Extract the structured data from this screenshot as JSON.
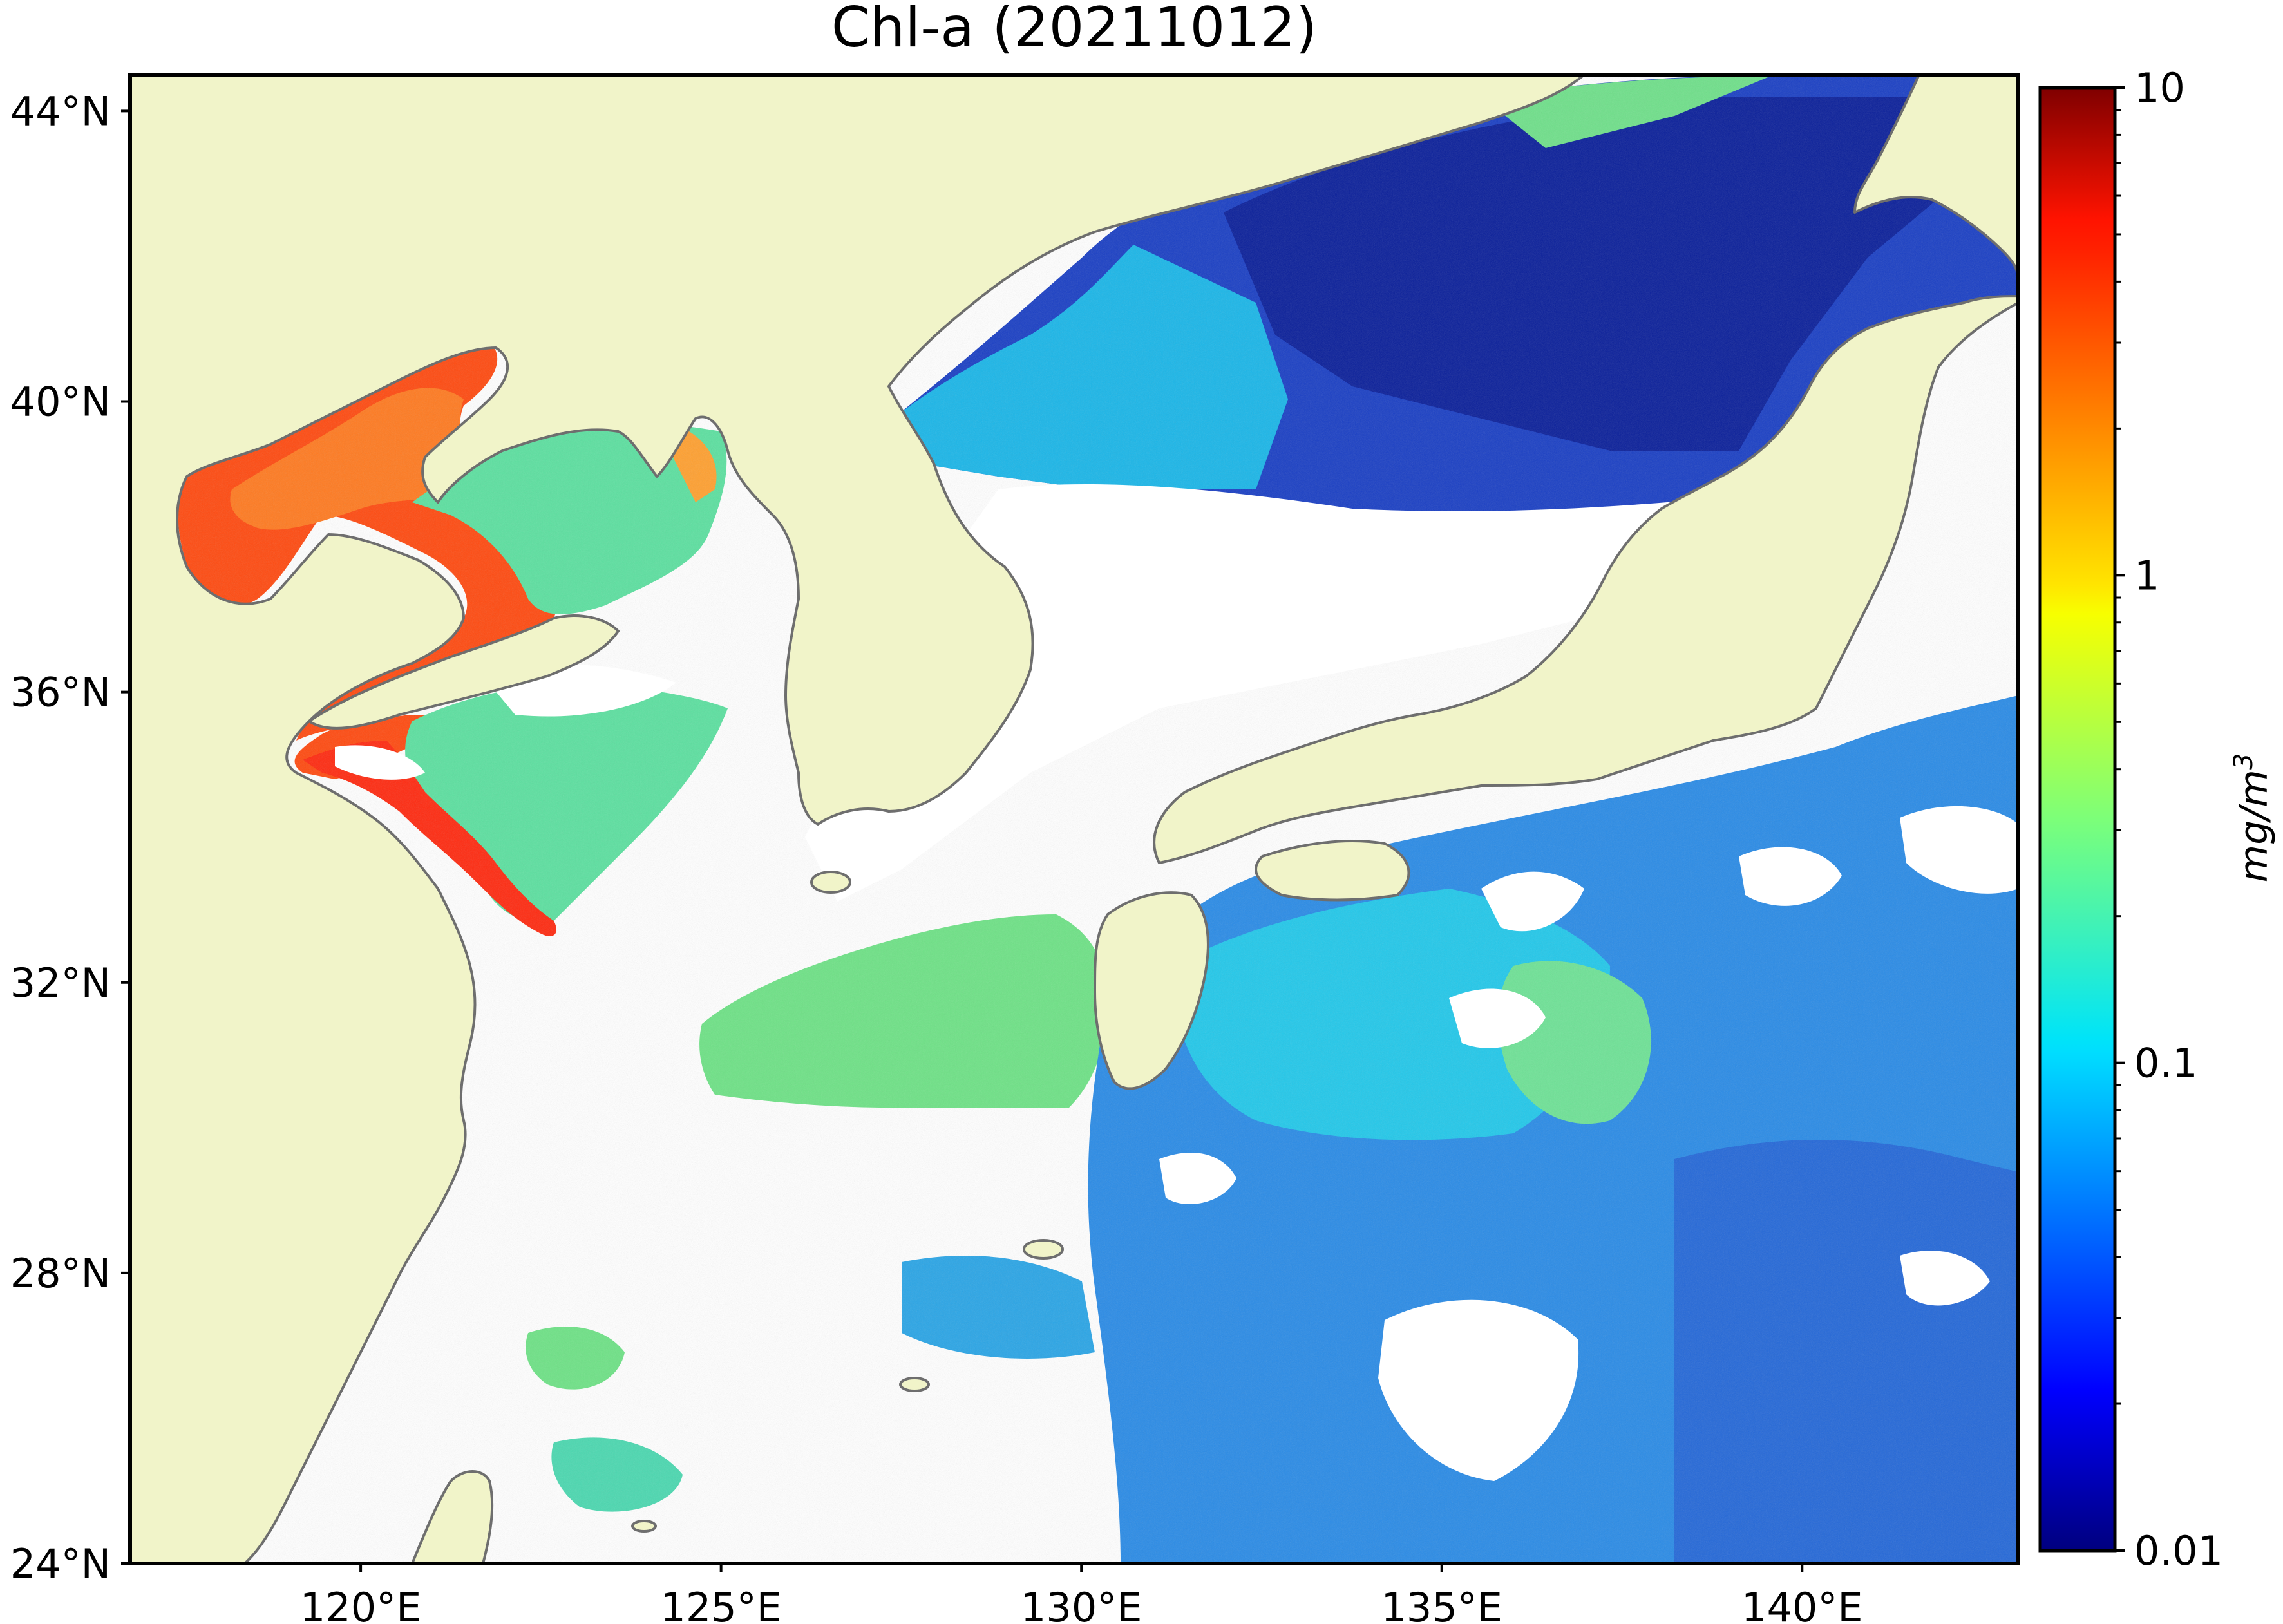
{
  "map": {
    "title": "Chl-a (20211012)",
    "projection": "lat-lon",
    "extent": {
      "lon_range": [
        116.8,
        143.0
      ],
      "lat_range": [
        24.0,
        44.5
      ]
    },
    "lat_ticks": [
      {
        "value": 44,
        "label": "44°N"
      },
      {
        "value": 40,
        "label": "40°N"
      },
      {
        "value": 36,
        "label": "36°N"
      },
      {
        "value": 32,
        "label": "32°N"
      },
      {
        "value": 28,
        "label": "28°N"
      },
      {
        "value": 24,
        "label": "24°N"
      }
    ],
    "lon_ticks": [
      {
        "value": 120,
        "label": "120°E"
      },
      {
        "value": 125,
        "label": "125°E"
      },
      {
        "value": 130,
        "label": "130°E"
      },
      {
        "value": 135,
        "label": "135°E"
      },
      {
        "value": 140,
        "label": "140°E"
      }
    ],
    "colors": {
      "land": "#f1f4c9",
      "coastline": "#6e6e6e",
      "no_data": "#ffffff",
      "frame": "#000000"
    },
    "regions": [
      {
        "id": "bohai-bay",
        "level": "high",
        "approx_mg_m3": 4.0
      },
      {
        "id": "yellow-sea-north",
        "level": "medium",
        "approx_mg_m3": 0.3
      },
      {
        "id": "jiangsu-coast",
        "level": "high",
        "approx_mg_m3": 3.0
      },
      {
        "id": "east-china-sea-shelf",
        "level": "medium",
        "approx_mg_m3": 0.25
      },
      {
        "id": "sea-of-japan",
        "level": "low",
        "approx_mg_m3": 0.03
      },
      {
        "id": "pacific-south-of-japan",
        "level": "low",
        "approx_mg_m3": 0.08
      }
    ]
  },
  "colorbar": {
    "label": "mg/m",
    "label_superscript": "3",
    "scale": "log",
    "range": [
      0.01,
      10
    ],
    "colormap": "jet",
    "ticks": [
      {
        "value": 10,
        "label": "10"
      },
      {
        "value": 1,
        "label": "1"
      },
      {
        "value": 0.1,
        "label": "0.1"
      },
      {
        "value": 0.01,
        "label": "0.01"
      }
    ]
  }
}
